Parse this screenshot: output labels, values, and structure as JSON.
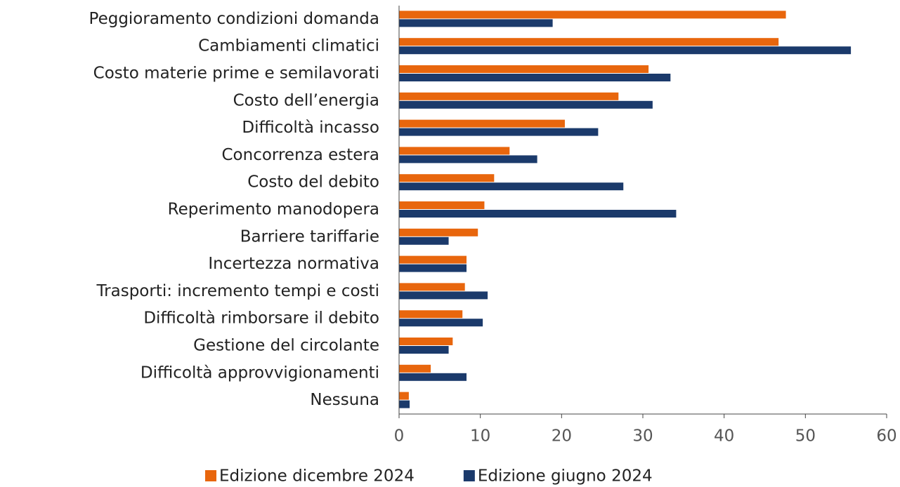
{
  "chart_data": {
    "type": "barh",
    "categories": [
      "Peggioramento condizioni domanda",
      "Cambiamenti climatici",
      "Costo materie prime e semilavorati",
      "Costo dell’energia",
      "Difficoltà incasso",
      "Concorrenza estera",
      "Costo del debito",
      "Reperimento manodopera",
      "Barriere tariffarie",
      "Incertezza normativa",
      "Trasporti: incremento tempi e costi",
      "Difficoltà rimborsare il debito",
      "Gestione del circolante",
      "Difficoltà approvvigionamenti",
      "Nessuna"
    ],
    "series": [
      {
        "name": "Edizione dicembre 2024",
        "color": "#e8660d",
        "values": [
          47.6,
          46.7,
          30.7,
          27.0,
          20.4,
          13.6,
          11.7,
          10.5,
          9.7,
          8.3,
          8.1,
          7.8,
          6.6,
          3.9,
          1.2
        ]
      },
      {
        "name": "Edizione giugno 2024",
        "color": "#1b3a6b",
        "values": [
          18.9,
          55.6,
          33.4,
          31.2,
          24.5,
          17.0,
          27.6,
          34.1,
          6.1,
          8.3,
          10.9,
          10.3,
          6.1,
          8.3,
          1.3
        ]
      }
    ],
    "xlim": [
      0,
      60
    ],
    "xticks": [
      0,
      10,
      20,
      30,
      40,
      50,
      60
    ],
    "grid": false,
    "legend": "bottom"
  }
}
